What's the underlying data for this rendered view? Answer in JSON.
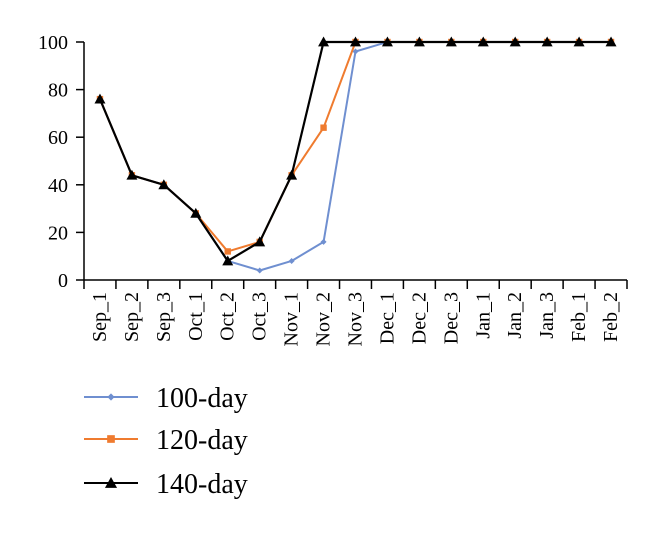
{
  "chart_data": {
    "type": "line",
    "title": "",
    "xlabel": "",
    "ylabel": "",
    "categories": [
      "Sep_1",
      "Sep_2",
      "Sep_3",
      "Oct_1",
      "Oct_2",
      "Oct_3",
      "Nov_1",
      "Nov_2",
      "Nov_3",
      "Dec_1",
      "Dec_2",
      "Dec_3",
      "Jan_1",
      "Jan_2",
      "Jan_3",
      "Feb_1",
      "Feb_2"
    ],
    "ylim": [
      0,
      100
    ],
    "yticks": [
      0,
      20,
      40,
      60,
      80,
      100
    ],
    "grid": false,
    "legend_position": "bottom-left",
    "series": [
      {
        "name": "100-day",
        "color": "#6f8fd0",
        "marker": "diamond",
        "values": [
          76,
          44,
          40,
          28,
          8,
          4,
          8,
          16,
          96,
          100,
          100,
          100,
          100,
          100,
          100,
          100,
          100
        ]
      },
      {
        "name": "120-day",
        "color": "#ef7b2f",
        "marker": "square",
        "values": [
          76,
          44,
          40,
          28,
          12,
          16,
          44,
          64,
          100,
          100,
          100,
          100,
          100,
          100,
          100,
          100,
          100
        ]
      },
      {
        "name": "140-day",
        "color": "#000000",
        "marker": "triangle",
        "values": [
          76,
          44,
          40,
          28,
          8,
          16,
          44,
          100,
          100,
          100,
          100,
          100,
          100,
          100,
          100,
          100,
          100
        ]
      }
    ]
  }
}
